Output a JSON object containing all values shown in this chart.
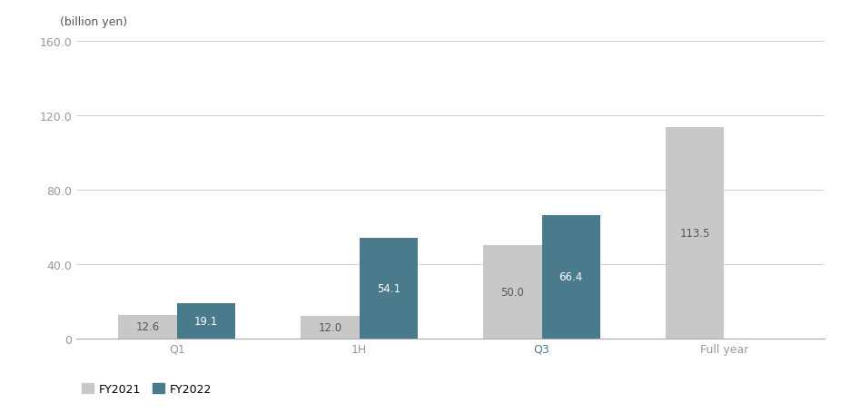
{
  "categories": [
    "Q1",
    "1H",
    "Q3",
    "Full year"
  ],
  "fy2021_values": [
    12.6,
    12.0,
    50.0,
    113.5
  ],
  "fy2022_values": [
    19.1,
    54.1,
    66.4,
    null
  ],
  "fy2021_color": "#c8c8c8",
  "fy2022_color": "#4a7b8c",
  "bar_width": 0.32,
  "ylim": [
    0,
    160
  ],
  "yticks": [
    0,
    40.0,
    80.0,
    120.0,
    160.0
  ],
  "ytick_labels": [
    "0",
    "40.0",
    "80.0",
    "120.0",
    "160.0"
  ],
  "ylabel": "(billion yen)",
  "label_fy2021": "FY2021",
  "label_fy2022": "FY2022",
  "q3_label_color": "#4a7b8c",
  "background_color": "#ffffff",
  "grid_color": "#d0d0d0",
  "label_color_light": "#ffffff",
  "label_color_dark": "#555555",
  "value_fontsize": 8.5,
  "axis_label_fontsize": 9,
  "tick_fontsize": 9,
  "legend_fontsize": 9,
  "tick_color": "#999999"
}
